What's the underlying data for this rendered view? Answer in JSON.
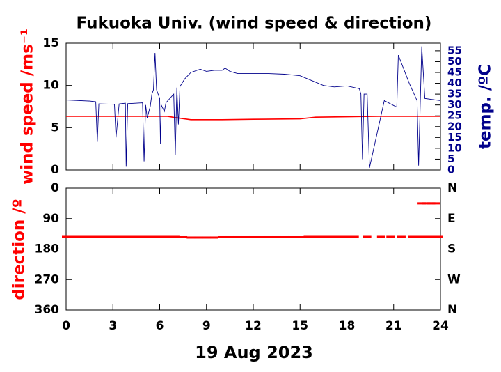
{
  "chart_data": [
    {
      "type": "line",
      "title": "Fukuoka Univ. (wind speed & direction)",
      "ylabel": "wind speed /ms⁻¹",
      "y2label": "temp. /ºC",
      "xlim": [
        0,
        24
      ],
      "xticks": [
        0,
        3,
        6,
        9,
        12,
        15,
        18,
        21,
        24
      ],
      "ylim": [
        0,
        15
      ],
      "yticks": [
        0,
        5,
        10,
        15
      ],
      "y2lim": [
        0,
        58.5
      ],
      "y2ticks": [
        0,
        5,
        10,
        15,
        20,
        25,
        30,
        35,
        40,
        45,
        50,
        55
      ],
      "series": [
        {
          "name": "wind speed",
          "color": "#ff0000",
          "x": [
            0,
            3,
            6.5,
            7,
            8,
            10,
            12,
            15,
            16,
            20,
            24
          ],
          "values": [
            6.35,
            6.35,
            6.35,
            6.2,
            5.95,
            5.95,
            6.0,
            6.05,
            6.25,
            6.35,
            6.35
          ]
        },
        {
          "name": "temp.",
          "color": "#00008b",
          "axis": "y2",
          "x": [
            0,
            1.5,
            1.9,
            2.0,
            2.1,
            3.1,
            3.2,
            3.4,
            3.8,
            3.85,
            3.95,
            4.9,
            5.0,
            5.1,
            5.2,
            5.4,
            5.5,
            5.6,
            5.7,
            5.8,
            6.0,
            6.05,
            6.1,
            6.3,
            6.4,
            6.9,
            7.0,
            7.1,
            7.2,
            7.3,
            7.6,
            8.0,
            8.6,
            9.0,
            9.5,
            10.0,
            10.2,
            10.5,
            11,
            12,
            13,
            14,
            15,
            15.5,
            16.5,
            17.2,
            18,
            18.8,
            18.9,
            19.0,
            19.1,
            19.3,
            19.45,
            20.4,
            21.2,
            21.3,
            22.0,
            22.5,
            22.6,
            22.8,
            23.0,
            24
          ],
          "values": [
            32.3,
            31.8,
            31.5,
            13,
            30.5,
            30.3,
            15,
            30.5,
            30.8,
            1.5,
            30.6,
            31,
            4,
            30,
            24,
            29.5,
            35,
            37,
            54,
            37,
            33,
            12,
            30,
            27,
            31,
            35,
            7,
            38,
            21,
            38.5,
            42,
            45,
            46.5,
            45.5,
            46,
            46,
            47,
            45.5,
            44.5,
            44.5,
            44.5,
            44.2,
            43.5,
            42,
            39,
            38.3,
            38.8,
            37.5,
            35,
            5,
            35,
            35,
            1,
            32,
            29,
            53,
            40,
            32,
            2,
            57,
            33,
            32
          ]
        }
      ]
    },
    {
      "type": "scatter",
      "ylabel": "direction /º",
      "xlabel": "19 Aug 2023",
      "xlim": [
        0,
        24
      ],
      "xticks": [
        0,
        3,
        6,
        9,
        12,
        15,
        18,
        21,
        24
      ],
      "ylim": [
        0,
        360
      ],
      "yinvert": true,
      "yticks": [
        0,
        90,
        180,
        270,
        360
      ],
      "y2ticks": [
        {
          "value": 0,
          "label": "N"
        },
        {
          "value": 90,
          "label": "E"
        },
        {
          "value": 180,
          "label": "S"
        },
        {
          "value": 270,
          "label": "W"
        },
        {
          "value": 360,
          "label": "N"
        }
      ],
      "series": [
        {
          "name": "direction",
          "color": "#ff0000",
          "x": [
            0,
            0.5,
            1,
            1.5,
            2,
            2.5,
            3,
            3.5,
            4,
            4.5,
            5,
            5.5,
            6,
            6.5,
            7,
            7.5,
            8,
            8.5,
            9,
            9.5,
            10,
            10.5,
            11,
            11.5,
            12,
            12.5,
            13,
            13.5,
            14,
            14.5,
            15,
            15.5,
            16,
            16.5,
            17,
            17.5,
            18,
            18.5,
            19.3,
            20.2,
            20.8,
            21.5,
            22.2,
            22.7,
            23.0,
            23.3,
            23.6,
            23.9,
            22.8,
            23.1,
            23.4,
            23.7
          ],
          "values": [
            144,
            144,
            144,
            144,
            144,
            144,
            144,
            144,
            144,
            144,
            144,
            144,
            144,
            144,
            144,
            145,
            146,
            146,
            146,
            146,
            145,
            145,
            145,
            145,
            145,
            145,
            145,
            145,
            145,
            145,
            145,
            144,
            144,
            144,
            144,
            144,
            144,
            144,
            144,
            144,
            144,
            144,
            144,
            144,
            144,
            144,
            144,
            144,
            45,
            45,
            45,
            45
          ]
        }
      ]
    }
  ]
}
